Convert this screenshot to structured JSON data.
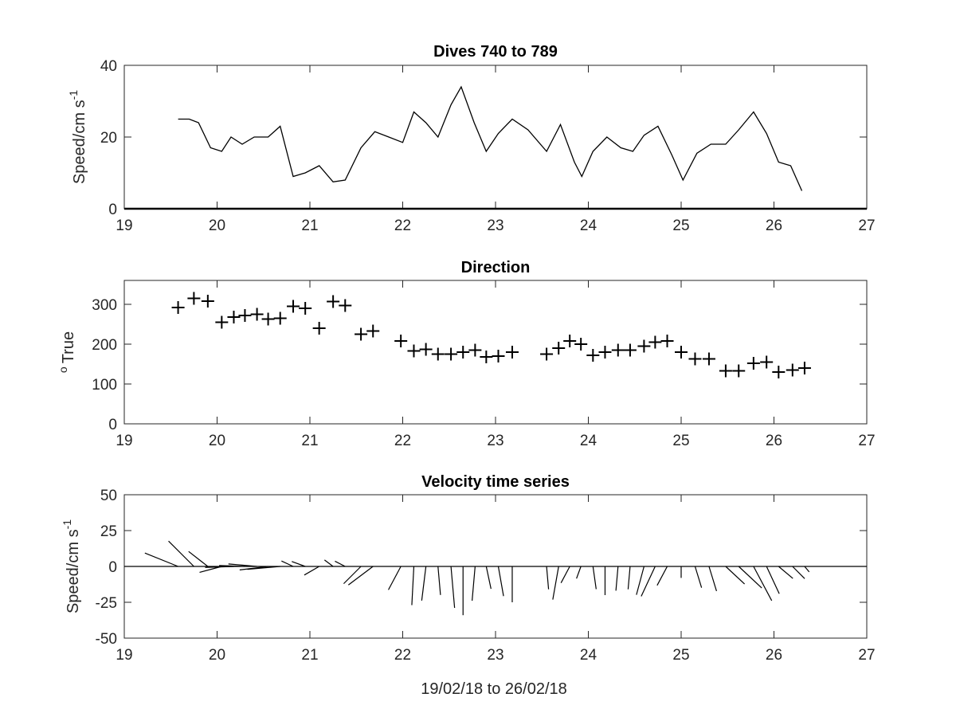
{
  "chart_data": [
    {
      "type": "line",
      "title": "Dives 740 to 789",
      "ylabel": "Speed/cm s",
      "ylabel_sup": "-1",
      "xlabel": "",
      "xlim": [
        19,
        27
      ],
      "ylim": [
        0,
        40
      ],
      "xticks": [
        19,
        20,
        21,
        22,
        23,
        24,
        25,
        26,
        27
      ],
      "yticks": [
        0,
        20,
        40
      ],
      "color": "#000000",
      "series": [
        {
          "x": [
            19.58,
            19.7,
            19.8,
            19.93,
            20.05,
            20.15,
            20.27,
            20.4,
            20.55,
            20.68,
            20.82,
            20.95,
            21.1,
            21.25,
            21.38,
            21.55,
            21.7,
            21.85,
            22.0,
            22.12,
            22.25,
            22.38,
            22.52,
            22.63,
            22.77,
            22.9,
            23.03,
            23.18,
            23.35,
            23.55,
            23.7,
            23.85,
            23.93,
            24.05,
            24.2,
            24.35,
            24.48,
            24.6,
            24.75,
            24.9,
            25.02,
            25.17,
            25.32,
            25.48,
            25.62,
            25.78,
            25.92,
            26.05,
            26.18,
            26.3
          ],
          "y": [
            25,
            25,
            24,
            17,
            16,
            20,
            18,
            20,
            20,
            23,
            9,
            10,
            12,
            7.5,
            8,
            17,
            21.5,
            20,
            18.5,
            27,
            24,
            20,
            29,
            34,
            24,
            16,
            21,
            25,
            22,
            16,
            23.5,
            13,
            9,
            16,
            20,
            17,
            16,
            20.5,
            23,
            15,
            8,
            15.5,
            18,
            18,
            22,
            27,
            21,
            13,
            12,
            5
          ]
        }
      ]
    },
    {
      "type": "scatter",
      "title": "Direction",
      "ylabel": "True",
      "ylabel_prefix": "o",
      "xlabel": "",
      "marker": "+",
      "xlim": [
        19,
        27
      ],
      "ylim": [
        0,
        360
      ],
      "xticks": [
        19,
        20,
        21,
        22,
        23,
        24,
        25,
        26,
        27
      ],
      "yticks": [
        0,
        100,
        200,
        300
      ],
      "color": "#000000",
      "series": [
        {
          "x": [
            19.58,
            19.75,
            19.9,
            20.05,
            20.18,
            20.3,
            20.43,
            20.55,
            20.68,
            20.82,
            20.95,
            21.1,
            21.25,
            21.38,
            21.55,
            21.68,
            21.98,
            22.12,
            22.25,
            22.38,
            22.52,
            22.65,
            22.78,
            22.9,
            23.03,
            23.18,
            23.55,
            23.68,
            23.8,
            23.92,
            24.05,
            24.18,
            24.32,
            24.45,
            24.6,
            24.72,
            24.85,
            25.0,
            25.15,
            25.3,
            25.48,
            25.62,
            25.78,
            25.92,
            26.05,
            26.2,
            26.33
          ],
          "y": [
            292,
            315,
            308,
            255,
            268,
            272,
            275,
            263,
            265,
            295,
            290,
            240,
            307,
            297,
            225,
            233,
            208,
            183,
            187,
            175,
            175,
            180,
            185,
            168,
            170,
            180,
            175,
            190,
            208,
            200,
            172,
            180,
            185,
            185,
            195,
            205,
            208,
            180,
            163,
            163,
            133,
            133,
            152,
            155,
            130,
            135,
            140
          ]
        }
      ]
    },
    {
      "type": "line",
      "subtype": "velocity-vector-stick",
      "title": "Velocity time series",
      "ylabel": "Speed/cm s",
      "ylabel_sup": "-1",
      "xlabel": "19/02/18 to 26/02/18",
      "xlim": [
        19,
        27
      ],
      "ylim": [
        -50,
        50
      ],
      "xticks": [
        19,
        20,
        21,
        22,
        23,
        24,
        25,
        26,
        27
      ],
      "yticks": [
        -50,
        -25,
        0,
        25,
        50
      ],
      "color": "#000000",
      "note": "sticks drawn from (dive time, 0) using speed and direction of the upper panels"
    }
  ]
}
